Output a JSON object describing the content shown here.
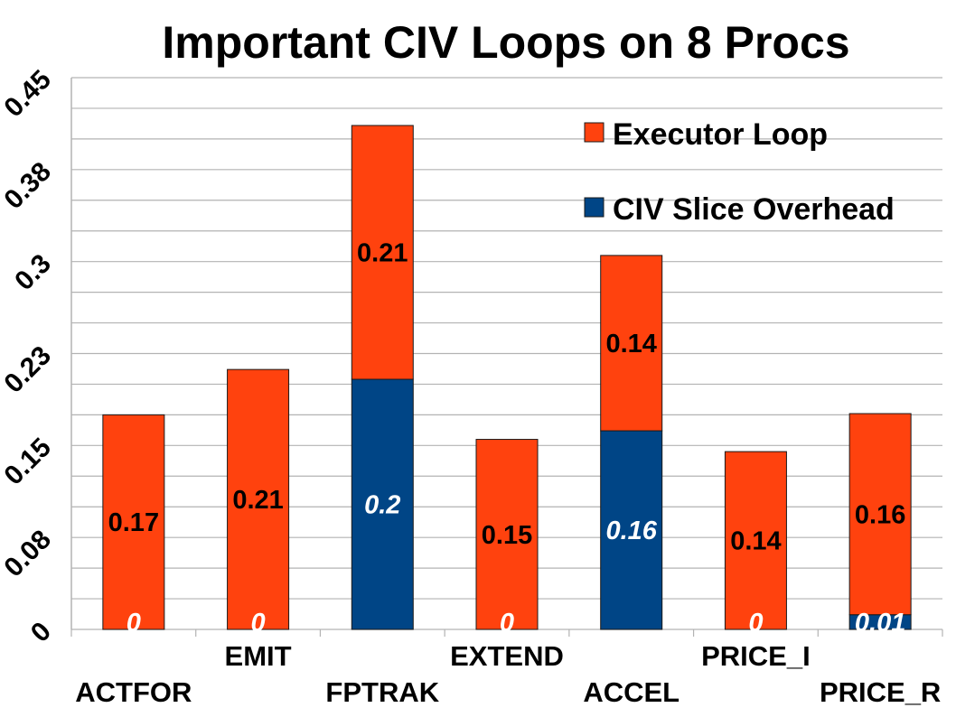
{
  "chart_data": {
    "type": "bar",
    "stacked": true,
    "title": "Important CIV Loops on 8 Procs",
    "xlabel": "",
    "ylabel": "",
    "categories": [
      "ACTFOR",
      "EMIT",
      "FPTRAK",
      "EXTEND",
      "ACCEL",
      "PRICE_I",
      "PRICE_R"
    ],
    "ylim": [
      0,
      0.45
    ],
    "yticks": [
      "0",
      "0.08",
      "0.15",
      "0.23",
      "0.3",
      "0.38",
      "0.45"
    ],
    "grid": true,
    "legend_position": "top-right",
    "series": [
      {
        "name": "CIV Slice Overhead",
        "color": "#004586",
        "values": [
          0,
          0,
          0.204,
          0,
          0.162,
          0,
          0.012
        ],
        "labels": [
          "0",
          "0",
          "0.2",
          "0",
          "0.16",
          "0",
          "0.01"
        ]
      },
      {
        "name": "Executor Loop",
        "color": "#ff420e",
        "values": [
          0.175,
          0.212,
          0.207,
          0.155,
          0.143,
          0.145,
          0.164
        ],
        "labels": [
          "0.17",
          "0.21",
          "0.21",
          "0.15",
          "0.14",
          "0.14",
          "0.16"
        ]
      }
    ]
  }
}
